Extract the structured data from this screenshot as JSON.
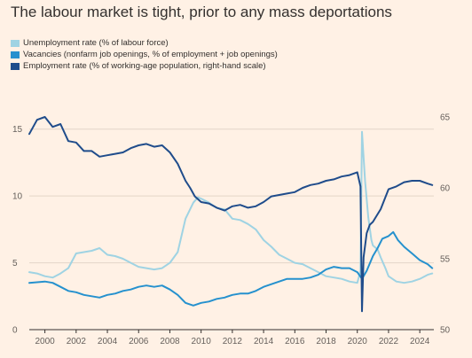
{
  "chart_data": {
    "type": "line",
    "title": "The labour market is tight, prior to any mass deportations",
    "colors": {
      "unemployment": "#9fd3e3",
      "vacancies": "#2591ce",
      "employment": "#1f4c8b",
      "grid": "#e3d5c8",
      "baseline": "#33302e",
      "background": "#fff1e5"
    },
    "x_range": [
      1999.0,
      2024.9
    ],
    "x_ticks": [
      2000,
      2002,
      2004,
      2006,
      2008,
      2010,
      2012,
      2014,
      2016,
      2018,
      2020,
      2022,
      2024
    ],
    "x_tick_labels": [
      "2000",
      "2002",
      "2004",
      "2006",
      "2008",
      "2010",
      "2012",
      "2014",
      "2016",
      "2018",
      "2020",
      "2022",
      "2024"
    ],
    "y_left": {
      "range": [
        0,
        17.5
      ],
      "ticks": [
        0,
        5,
        10,
        15
      ],
      "tick_labels": [
        "0",
        "5",
        "10",
        "15"
      ]
    },
    "y_right": {
      "range": [
        50,
        66.5
      ],
      "ticks": [
        50,
        55,
        60,
        65
      ],
      "tick_labels": [
        "50",
        "55",
        "60",
        "65"
      ]
    },
    "grid": true,
    "legend_position": "top-left",
    "series": [
      {
        "name": "Unemployment rate (% of labour force)",
        "key": "unemployment",
        "axis": "left",
        "x": [
          1999.0,
          1999.5,
          2000.0,
          2000.5,
          2001.0,
          2001.5,
          2002.0,
          2002.5,
          2003.0,
          2003.5,
          2004.0,
          2004.5,
          2005.0,
          2005.5,
          2006.0,
          2006.5,
          2007.0,
          2007.5,
          2008.0,
          2008.5,
          2009.0,
          2009.5,
          2009.8,
          2010.0,
          2010.5,
          2011.0,
          2011.5,
          2012.0,
          2012.5,
          2013.0,
          2013.5,
          2014.0,
          2014.5,
          2015.0,
          2015.5,
          2016.0,
          2016.5,
          2017.0,
          2017.5,
          2018.0,
          2018.5,
          2019.0,
          2019.5,
          2020.0,
          2020.2,
          2020.3,
          2020.5,
          2020.7,
          2020.9,
          2021.0,
          2021.3,
          2021.5,
          2021.8,
          2022.0,
          2022.5,
          2023.0,
          2023.5,
          2024.0,
          2024.5,
          2024.8
        ],
        "y": [
          4.3,
          4.2,
          4.0,
          3.9,
          4.2,
          4.6,
          5.7,
          5.8,
          5.9,
          6.1,
          5.6,
          5.5,
          5.3,
          5.0,
          4.7,
          4.6,
          4.5,
          4.6,
          5.0,
          5.8,
          8.3,
          9.5,
          9.9,
          9.8,
          9.5,
          9.1,
          9.0,
          8.3,
          8.2,
          7.9,
          7.5,
          6.7,
          6.2,
          5.6,
          5.3,
          5.0,
          4.9,
          4.6,
          4.3,
          4.0,
          3.9,
          3.8,
          3.6,
          3.5,
          4.4,
          14.8,
          11.1,
          8.4,
          6.7,
          6.3,
          6.0,
          5.4,
          4.6,
          4.0,
          3.6,
          3.5,
          3.6,
          3.8,
          4.1,
          4.2
        ]
      },
      {
        "name": "Vacancies (nonfarm job openings, % of employment + job openings)",
        "key": "vacancies",
        "axis": "left",
        "x": [
          1999.0,
          2000.0,
          2000.5,
          2001.0,
          2001.5,
          2002.0,
          2002.5,
          2003.0,
          2003.5,
          2004.0,
          2004.5,
          2005.0,
          2005.5,
          2006.0,
          2006.5,
          2007.0,
          2007.5,
          2008.0,
          2008.5,
          2009.0,
          2009.5,
          2010.0,
          2010.5,
          2011.0,
          2011.5,
          2012.0,
          2012.5,
          2013.0,
          2013.5,
          2014.0,
          2014.5,
          2015.0,
          2015.5,
          2016.0,
          2016.5,
          2017.0,
          2017.5,
          2018.0,
          2018.5,
          2019.0,
          2019.5,
          2020.0,
          2020.3,
          2020.6,
          2021.0,
          2021.3,
          2021.6,
          2022.0,
          2022.3,
          2022.6,
          2023.0,
          2023.5,
          2024.0,
          2024.5,
          2024.8
        ],
        "y": [
          3.5,
          3.6,
          3.5,
          3.2,
          2.9,
          2.8,
          2.6,
          2.5,
          2.4,
          2.6,
          2.7,
          2.9,
          3.0,
          3.2,
          3.3,
          3.2,
          3.3,
          3.0,
          2.6,
          2.0,
          1.8,
          2.0,
          2.1,
          2.3,
          2.4,
          2.6,
          2.7,
          2.7,
          2.9,
          3.2,
          3.4,
          3.6,
          3.8,
          3.8,
          3.8,
          3.9,
          4.1,
          4.5,
          4.7,
          4.6,
          4.6,
          4.3,
          3.8,
          4.4,
          5.5,
          6.1,
          6.8,
          7.0,
          7.3,
          6.7,
          6.2,
          5.7,
          5.2,
          4.9,
          4.6
        ]
      },
      {
        "name": "Employment rate (% of working-age population, right-hand scale)",
        "key": "employment",
        "axis": "right",
        "x": [
          1999.0,
          1999.5,
          2000.0,
          2000.5,
          2001.0,
          2001.5,
          2002.0,
          2002.5,
          2003.0,
          2003.5,
          2004.0,
          2004.5,
          2005.0,
          2005.5,
          2006.0,
          2006.5,
          2007.0,
          2007.5,
          2008.0,
          2008.5,
          2009.0,
          2009.3,
          2009.6,
          2010.0,
          2010.5,
          2011.0,
          2011.5,
          2012.0,
          2012.5,
          2013.0,
          2013.5,
          2014.0,
          2014.5,
          2015.0,
          2015.5,
          2016.0,
          2016.5,
          2017.0,
          2017.5,
          2018.0,
          2018.5,
          2019.0,
          2019.5,
          2020.0,
          2020.2,
          2020.3,
          2020.4,
          2020.6,
          2020.8,
          2021.0,
          2021.5,
          2022.0,
          2022.5,
          2023.0,
          2023.5,
          2024.0,
          2024.5,
          2024.8
        ],
        "y": [
          63.8,
          64.8,
          65.0,
          64.3,
          64.5,
          63.3,
          63.2,
          62.6,
          62.6,
          62.2,
          62.3,
          62.4,
          62.5,
          62.8,
          63.0,
          63.1,
          62.9,
          63.0,
          62.5,
          61.7,
          60.5,
          60.0,
          59.4,
          59.0,
          58.9,
          58.6,
          58.4,
          58.7,
          58.8,
          58.6,
          58.7,
          59.0,
          59.4,
          59.5,
          59.6,
          59.7,
          60.0,
          60.2,
          60.3,
          60.5,
          60.6,
          60.8,
          60.9,
          61.1,
          60.1,
          51.3,
          55.1,
          56.8,
          57.4,
          57.6,
          58.5,
          59.9,
          60.1,
          60.4,
          60.5,
          60.5,
          60.3,
          60.2
        ]
      }
    ]
  }
}
